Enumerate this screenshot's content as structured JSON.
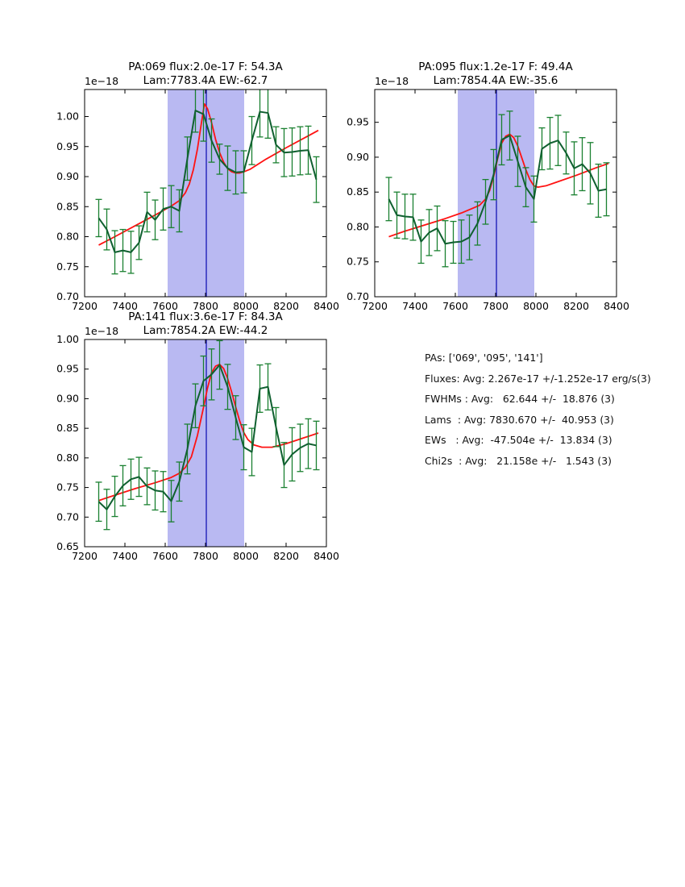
{
  "colors": {
    "band": "#b9b9f2",
    "vline": "#1515b5",
    "spectrum": "#106030",
    "errorbar": "#1a8030",
    "fit": "#ff1212",
    "spine": "#000000",
    "text": "#000000",
    "background": "#ffffff"
  },
  "summary": {
    "lines": [
      "PAs: ['069', '095', '141']",
      "Fluxes: Avg: 2.267e-17 +/-1.252e-17 erg/s(3)",
      "FWHMs : Avg:   62.644 +/-  18.876 (3)",
      "Lams  : Avg: 7830.670 +/-  40.953 (3)",
      "EWs   : Avg:  -47.504e +/-  13.834 (3)",
      "Chi2s  : Avg:   21.158e +/-   1.543 (3)"
    ]
  },
  "chart_data": [
    {
      "id": "pa069",
      "type": "line",
      "title": "PA:069 flux:2.0e-17 F: 54.3A",
      "subtitle": "Lam:7783.4A EW:-62.7",
      "offset_label": "1e−18",
      "xlim": [
        7200,
        8400
      ],
      "ylim": [
        0.7,
        1.045
      ],
      "xticks": [
        "7200",
        "7400",
        "7600",
        "7800",
        "8000",
        "8200",
        "8400"
      ],
      "yticks": [
        "0.70",
        "0.75",
        "0.80",
        "0.85",
        "0.90",
        "0.95",
        "1.00"
      ],
      "band": [
        7612,
        7992
      ],
      "vline": 7804,
      "series": [
        {
          "name": "spectrum",
          "x": [
            7270,
            7310,
            7350,
            7390,
            7430,
            7470,
            7510,
            7550,
            7590,
            7630,
            7670,
            7710,
            7750,
            7790,
            7830,
            7870,
            7910,
            7950,
            7990,
            8030,
            8070,
            8110,
            8150,
            8190,
            8230,
            8270,
            8310,
            8350
          ],
          "y": [
            0.831,
            0.812,
            0.774,
            0.777,
            0.774,
            0.79,
            0.841,
            0.828,
            0.846,
            0.85,
            0.843,
            0.93,
            1.01,
            1.004,
            0.96,
            0.929,
            0.914,
            0.907,
            0.908,
            0.96,
            1.008,
            1.006,
            0.953,
            0.94,
            0.941,
            0.943,
            0.944,
            0.895
          ],
          "yerr": [
            0.031,
            0.034,
            0.036,
            0.035,
            0.035,
            0.028,
            0.033,
            0.033,
            0.035,
            0.035,
            0.035,
            0.036,
            0.036,
            0.045,
            0.036,
            0.025,
            0.037,
            0.036,
            0.035,
            0.04,
            0.042,
            0.042,
            0.03,
            0.04,
            0.04,
            0.04,
            0.04,
            0.038
          ]
        },
        {
          "name": "fit",
          "x": [
            7270,
            7350,
            7450,
            7550,
            7630,
            7670,
            7700,
            7720,
            7740,
            7760,
            7780,
            7795,
            7810,
            7830,
            7850,
            7870,
            7890,
            7910,
            7930,
            7950,
            7970,
            7990,
            8020,
            8100,
            8200,
            8300,
            8360
          ],
          "y": [
            0.786,
            0.8,
            0.818,
            0.836,
            0.851,
            0.86,
            0.873,
            0.888,
            0.912,
            0.946,
            0.99,
            1.021,
            1.013,
            0.99,
            0.962,
            0.94,
            0.924,
            0.913,
            0.908,
            0.906,
            0.906,
            0.908,
            0.912,
            0.929,
            0.948,
            0.966,
            0.977
          ]
        }
      ]
    },
    {
      "id": "pa095",
      "type": "line",
      "title": "PA:095 flux:1.2e-17 F: 49.4A",
      "subtitle": "Lam:7854.4A EW:-35.6",
      "offset_label": "1e−18",
      "xlim": [
        7200,
        8400
      ],
      "ylim": [
        0.7,
        0.997
      ],
      "xticks": [
        "7200",
        "7400",
        "7600",
        "7800",
        "8000",
        "8200",
        "8400"
      ],
      "yticks": [
        "0.70",
        "0.75",
        "0.80",
        "0.85",
        "0.90",
        "0.95"
      ],
      "band": [
        7612,
        7992
      ],
      "vline": 7804,
      "series": [
        {
          "name": "spectrum",
          "x": [
            7270,
            7310,
            7350,
            7390,
            7430,
            7470,
            7510,
            7550,
            7590,
            7630,
            7670,
            7710,
            7750,
            7790,
            7830,
            7870,
            7910,
            7950,
            7990,
            8030,
            8070,
            8110,
            8150,
            8190,
            8230,
            8270,
            8310,
            8350
          ],
          "y": [
            0.84,
            0.817,
            0.815,
            0.814,
            0.779,
            0.792,
            0.798,
            0.776,
            0.778,
            0.779,
            0.785,
            0.805,
            0.836,
            0.875,
            0.925,
            0.931,
            0.894,
            0.857,
            0.84,
            0.912,
            0.92,
            0.924,
            0.906,
            0.884,
            0.89,
            0.877,
            0.852,
            0.854
          ],
          "yerr": [
            0.031,
            0.033,
            0.032,
            0.033,
            0.031,
            0.033,
            0.032,
            0.033,
            0.03,
            0.031,
            0.032,
            0.031,
            0.032,
            0.036,
            0.036,
            0.035,
            0.036,
            0.028,
            0.033,
            0.03,
            0.037,
            0.036,
            0.03,
            0.038,
            0.038,
            0.044,
            0.038,
            0.038
          ]
        },
        {
          "name": "fit",
          "x": [
            7270,
            7350,
            7450,
            7550,
            7630,
            7680,
            7720,
            7750,
            7770,
            7790,
            7810,
            7830,
            7850,
            7870,
            7890,
            7910,
            7930,
            7950,
            7970,
            7990,
            8010,
            8050,
            8100,
            8200,
            8300,
            8360
          ],
          "y": [
            0.786,
            0.794,
            0.803,
            0.812,
            0.82,
            0.826,
            0.831,
            0.84,
            0.852,
            0.872,
            0.898,
            0.92,
            0.93,
            0.933,
            0.928,
            0.916,
            0.899,
            0.882,
            0.868,
            0.859,
            0.857,
            0.859,
            0.864,
            0.874,
            0.885,
            0.891
          ]
        }
      ]
    },
    {
      "id": "pa141",
      "type": "line",
      "title": "PA:141 flux:3.6e-17 F: 84.3A",
      "subtitle": "Lam:7854.2A EW:-44.2",
      "offset_label": "1e−18",
      "xlim": [
        7200,
        8400
      ],
      "ylim": [
        0.65,
        1.0
      ],
      "xticks": [
        "7200",
        "7400",
        "7600",
        "7800",
        "8000",
        "8200",
        "8400"
      ],
      "yticks": [
        "0.65",
        "0.70",
        "0.75",
        "0.80",
        "0.85",
        "0.90",
        "0.95",
        "1.00"
      ],
      "band": [
        7612,
        7992
      ],
      "vline": 7804,
      "series": [
        {
          "name": "spectrum",
          "x": [
            7270,
            7310,
            7350,
            7390,
            7430,
            7470,
            7510,
            7550,
            7590,
            7630,
            7670,
            7710,
            7750,
            7790,
            7830,
            7870,
            7910,
            7950,
            7990,
            8030,
            8070,
            8110,
            8150,
            8190,
            8230,
            8270,
            8310,
            8350
          ],
          "y": [
            0.726,
            0.713,
            0.735,
            0.753,
            0.764,
            0.768,
            0.752,
            0.745,
            0.743,
            0.727,
            0.76,
            0.815,
            0.888,
            0.93,
            0.941,
            0.957,
            0.92,
            0.868,
            0.818,
            0.81,
            0.917,
            0.92,
            0.852,
            0.788,
            0.806,
            0.817,
            0.824,
            0.821
          ],
          "yerr": [
            0.033,
            0.034,
            0.034,
            0.034,
            0.034,
            0.033,
            0.031,
            0.033,
            0.034,
            0.035,
            0.033,
            0.042,
            0.037,
            0.042,
            0.043,
            0.041,
            0.038,
            0.037,
            0.038,
            0.04,
            0.04,
            0.039,
            0.033,
            0.038,
            0.045,
            0.04,
            0.042,
            0.041
          ]
        },
        {
          "name": "fit",
          "x": [
            7270,
            7350,
            7450,
            7550,
            7630,
            7670,
            7700,
            7730,
            7760,
            7790,
            7810,
            7830,
            7850,
            7870,
            7890,
            7910,
            7930,
            7950,
            7970,
            7990,
            8010,
            8040,
            8080,
            8130,
            8200,
            8280,
            8360
          ],
          "y": [
            0.728,
            0.737,
            0.748,
            0.758,
            0.767,
            0.774,
            0.784,
            0.802,
            0.838,
            0.885,
            0.918,
            0.944,
            0.955,
            0.958,
            0.951,
            0.934,
            0.911,
            0.886,
            0.862,
            0.843,
            0.831,
            0.822,
            0.818,
            0.818,
            0.824,
            0.833,
            0.842
          ]
        }
      ]
    }
  ]
}
